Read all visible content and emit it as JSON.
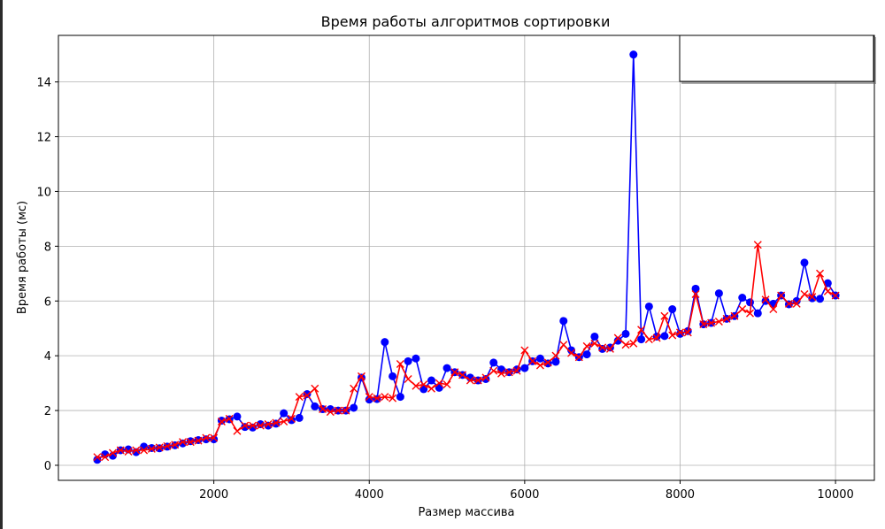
{
  "chart_data": {
    "type": "line",
    "title": "Время работы алгоритмов сортировки",
    "xlabel": "Размер массива",
    "ylabel": "Время работы (мс)",
    "xlim": [
      0,
      10500
    ],
    "ylim": [
      -0.55,
      15.7
    ],
    "xticks": [
      2000,
      4000,
      6000,
      8000,
      10000
    ],
    "yticks": [
      0,
      2,
      4,
      6,
      8,
      10,
      12,
      14
    ],
    "grid": true,
    "legend": {
      "placement": "top-right",
      "entries": []
    },
    "x": [
      500,
      600,
      700,
      800,
      900,
      1000,
      1100,
      1200,
      1300,
      1400,
      1500,
      1600,
      1700,
      1800,
      1900,
      2000,
      2100,
      2200,
      2300,
      2400,
      2500,
      2600,
      2700,
      2800,
      2900,
      3000,
      3100,
      3200,
      3300,
      3400,
      3500,
      3600,
      3700,
      3800,
      3900,
      4000,
      4100,
      4200,
      4300,
      4400,
      4500,
      4600,
      4700,
      4800,
      4900,
      5000,
      5100,
      5200,
      5300,
      5400,
      5500,
      5600,
      5700,
      5800,
      5900,
      6000,
      6100,
      6200,
      6300,
      6400,
      6500,
      6600,
      6700,
      6800,
      6900,
      7000,
      7100,
      7200,
      7300,
      7400,
      7500,
      7600,
      7700,
      7800,
      7900,
      8000,
      8100,
      8200,
      8300,
      8400,
      8500,
      8600,
      8700,
      8800,
      8900,
      9000,
      9100,
      9200,
      9300,
      9400,
      9500,
      9600,
      9700,
      9800,
      9900,
      10000
    ],
    "series": [
      {
        "color": "#0000ff",
        "marker": "circle",
        "values": [
          0.2,
          0.4,
          0.35,
          0.55,
          0.58,
          0.48,
          0.68,
          0.63,
          0.62,
          0.68,
          0.73,
          0.8,
          0.88,
          0.92,
          0.95,
          0.95,
          1.63,
          1.68,
          1.78,
          1.4,
          1.38,
          1.5,
          1.45,
          1.52,
          1.9,
          1.65,
          1.73,
          2.6,
          2.15,
          2.05,
          2.05,
          2.0,
          2.0,
          2.1,
          3.2,
          2.4,
          2.42,
          4.5,
          3.25,
          2.5,
          3.8,
          3.9,
          2.78,
          3.1,
          2.83,
          3.55,
          3.4,
          3.3,
          3.2,
          3.1,
          3.15,
          3.75,
          3.5,
          3.4,
          3.5,
          3.55,
          3.8,
          3.9,
          3.72,
          3.78,
          5.27,
          4.2,
          3.95,
          4.05,
          4.7,
          4.25,
          4.3,
          4.55,
          4.8,
          15.0,
          4.6,
          5.8,
          4.7,
          4.72,
          5.7,
          4.8,
          4.9,
          6.45,
          5.15,
          5.2,
          6.28,
          5.35,
          5.45,
          6.12,
          5.95,
          5.55,
          6.0,
          5.9,
          6.2,
          5.88,
          6.0,
          7.4,
          6.1,
          6.08,
          6.65,
          6.2
        ]
      },
      {
        "color": "#ff0000",
        "marker": "x",
        "values": [
          0.3,
          0.3,
          0.45,
          0.55,
          0.5,
          0.55,
          0.55,
          0.6,
          0.65,
          0.7,
          0.75,
          0.85,
          0.85,
          0.9,
          1.0,
          1.0,
          1.6,
          1.7,
          1.25,
          1.45,
          1.45,
          1.45,
          1.5,
          1.55,
          1.6,
          1.7,
          2.5,
          2.55,
          2.8,
          2.05,
          1.95,
          2.0,
          2.0,
          2.8,
          3.25,
          2.5,
          2.45,
          2.5,
          2.45,
          3.7,
          3.15,
          2.9,
          2.95,
          2.8,
          3.0,
          2.95,
          3.4,
          3.3,
          3.1,
          3.1,
          3.2,
          3.45,
          3.35,
          3.4,
          3.45,
          4.2,
          3.8,
          3.65,
          3.75,
          4.0,
          4.4,
          4.1,
          3.95,
          4.35,
          4.45,
          4.3,
          4.25,
          4.65,
          4.4,
          4.45,
          4.95,
          4.6,
          4.65,
          5.45,
          4.75,
          4.85,
          4.85,
          6.25,
          5.15,
          5.2,
          5.25,
          5.35,
          5.45,
          5.7,
          5.55,
          8.05,
          6.05,
          5.7,
          6.2,
          5.9,
          5.9,
          6.25,
          6.15,
          7.0,
          6.35,
          6.2
        ]
      }
    ]
  }
}
